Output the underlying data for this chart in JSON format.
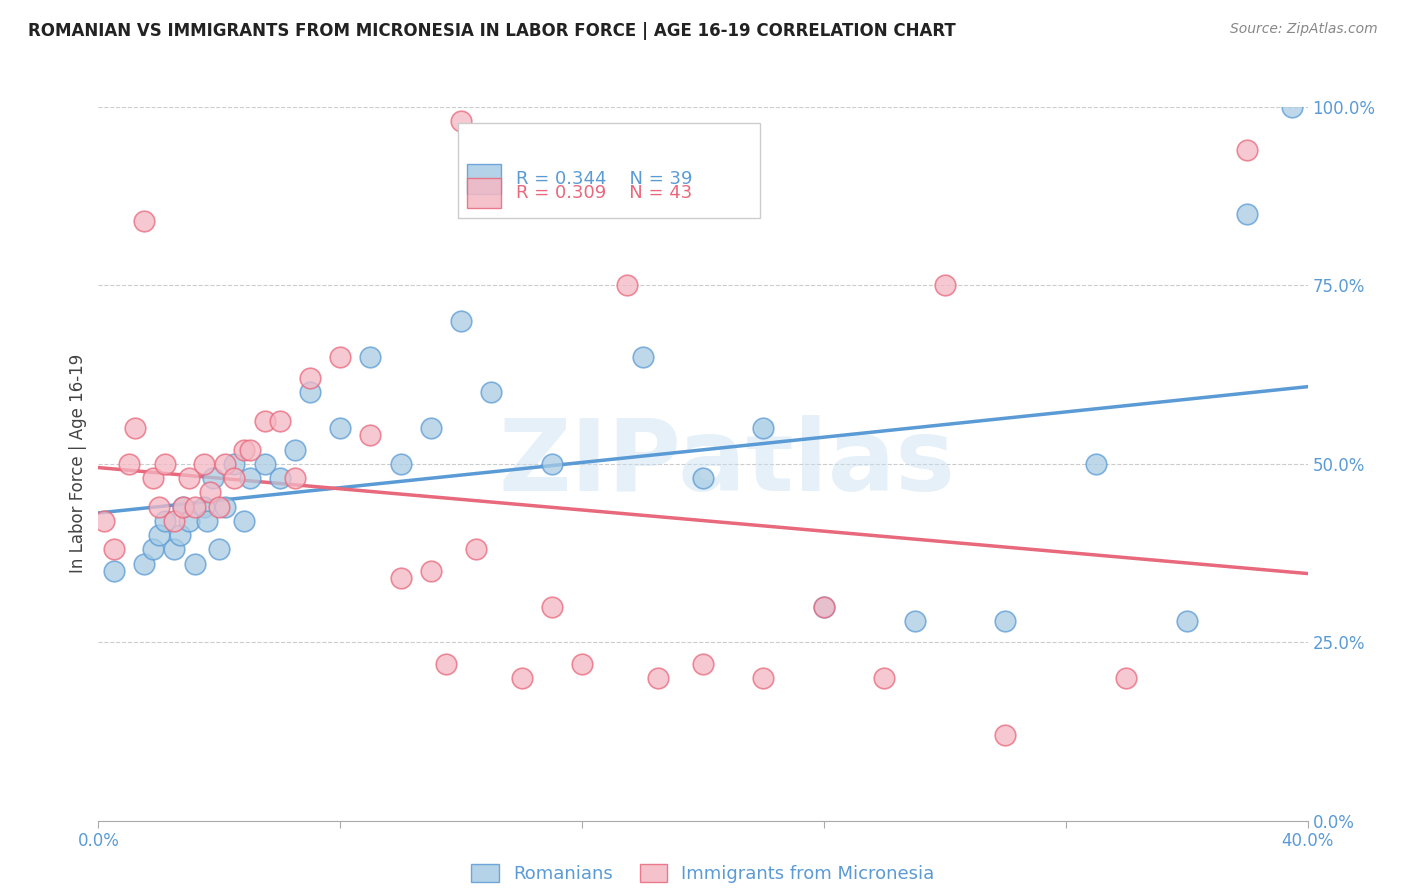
{
  "title": "ROMANIAN VS IMMIGRANTS FROM MICRONESIA IN LABOR FORCE | AGE 16-19 CORRELATION CHART",
  "source": "Source: ZipAtlas.com",
  "ylabel": "In Labor Force | Age 16-19",
  "ylabel_right_ticks": [
    "0.0%",
    "25.0%",
    "50.0%",
    "75.0%",
    "100.0%"
  ],
  "ylabel_right_vals": [
    0.0,
    0.25,
    0.5,
    0.75,
    1.0
  ],
  "legend_r_blue": "R = 0.344",
  "legend_n_blue": "N = 39",
  "legend_r_pink": "R = 0.309",
  "legend_n_pink": "N = 43",
  "blue_color": "#a8cce4",
  "pink_color": "#f4b8c4",
  "blue_edge_color": "#5b9bd5",
  "pink_edge_color": "#e8687c",
  "blue_line_color": "#5b9bd5",
  "pink_line_color": "#e8687c",
  "legend_text_blue": "#5b9bd5",
  "legend_text_pink": "#e8687c",
  "watermark": "ZIPatlas",
  "blue_points_x": [
    0.005,
    0.015,
    0.018,
    0.02,
    0.022,
    0.025,
    0.027,
    0.028,
    0.03,
    0.032,
    0.035,
    0.036,
    0.038,
    0.04,
    0.042,
    0.045,
    0.048,
    0.05,
    0.055,
    0.06,
    0.065,
    0.07,
    0.08,
    0.09,
    0.1,
    0.11,
    0.12,
    0.13,
    0.15,
    0.18,
    0.2,
    0.22,
    0.24,
    0.27,
    0.3,
    0.33,
    0.36,
    0.38,
    0.395
  ],
  "blue_points_y": [
    0.35,
    0.36,
    0.38,
    0.4,
    0.42,
    0.38,
    0.4,
    0.44,
    0.42,
    0.36,
    0.44,
    0.42,
    0.48,
    0.38,
    0.44,
    0.5,
    0.42,
    0.48,
    0.5,
    0.48,
    0.52,
    0.6,
    0.55,
    0.65,
    0.5,
    0.55,
    0.7,
    0.6,
    0.5,
    0.65,
    0.48,
    0.55,
    0.3,
    0.28,
    0.28,
    0.5,
    0.28,
    0.85,
    1.0
  ],
  "pink_points_x": [
    0.002,
    0.005,
    0.01,
    0.012,
    0.015,
    0.018,
    0.02,
    0.022,
    0.025,
    0.028,
    0.03,
    0.032,
    0.035,
    0.037,
    0.04,
    0.042,
    0.045,
    0.048,
    0.05,
    0.055,
    0.06,
    0.065,
    0.07,
    0.08,
    0.09,
    0.1,
    0.11,
    0.115,
    0.12,
    0.125,
    0.14,
    0.15,
    0.16,
    0.175,
    0.185,
    0.2,
    0.22,
    0.24,
    0.26,
    0.28,
    0.3,
    0.34,
    0.38
  ],
  "pink_points_y": [
    0.42,
    0.38,
    0.5,
    0.55,
    0.84,
    0.48,
    0.44,
    0.5,
    0.42,
    0.44,
    0.48,
    0.44,
    0.5,
    0.46,
    0.44,
    0.5,
    0.48,
    0.52,
    0.52,
    0.56,
    0.56,
    0.48,
    0.62,
    0.65,
    0.54,
    0.34,
    0.35,
    0.22,
    0.98,
    0.38,
    0.2,
    0.3,
    0.22,
    0.75,
    0.2,
    0.22,
    0.2,
    0.3,
    0.2,
    0.75,
    0.12,
    0.2,
    0.94
  ],
  "xlim": [
    0.0,
    0.4
  ],
  "ylim": [
    0.0,
    1.0
  ],
  "xtick_positions": [
    0.0,
    0.08,
    0.16,
    0.24,
    0.32,
    0.4
  ],
  "xtick_labels": [
    "0.0%",
    "",
    "",
    "",
    "",
    "40.0%"
  ]
}
